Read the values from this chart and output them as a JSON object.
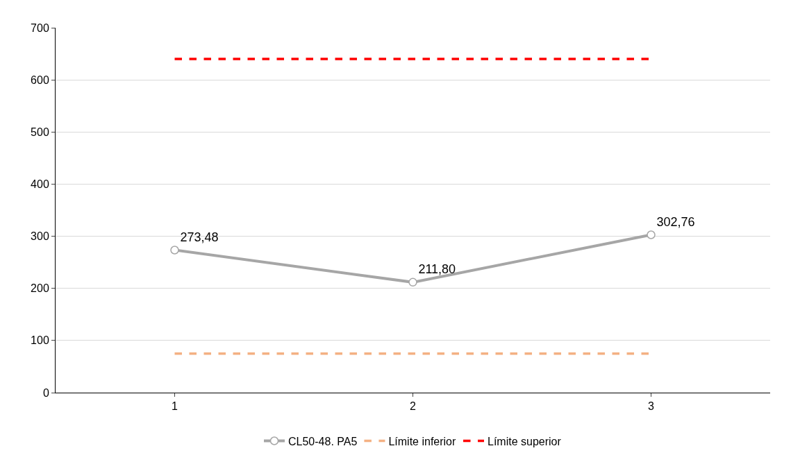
{
  "chart_data": {
    "type": "line",
    "categories": [
      "1",
      "2",
      "3"
    ],
    "ylim": [
      0,
      700
    ],
    "yticks": [
      0,
      100,
      200,
      300,
      400,
      500,
      600,
      700
    ],
    "grid": "y",
    "legend": "bottom",
    "series": [
      {
        "name": "CL50-48. PA5",
        "color": "#a6a6a6",
        "values": [
          273.48,
          211.8,
          302.76
        ],
        "marker": "circle",
        "line_style": "solid",
        "value_labels": [
          "273,48",
          "211,80",
          "302,76"
        ]
      },
      {
        "name": "Límite inferior",
        "color": "#f4b183",
        "values": [
          75,
          75,
          75
        ],
        "marker": "none",
        "line_style": "dashed"
      },
      {
        "name": "Límite superior",
        "color": "#ff0000",
        "values": [
          640,
          640,
          640
        ],
        "marker": "none",
        "line_style": "dashed"
      }
    ]
  }
}
